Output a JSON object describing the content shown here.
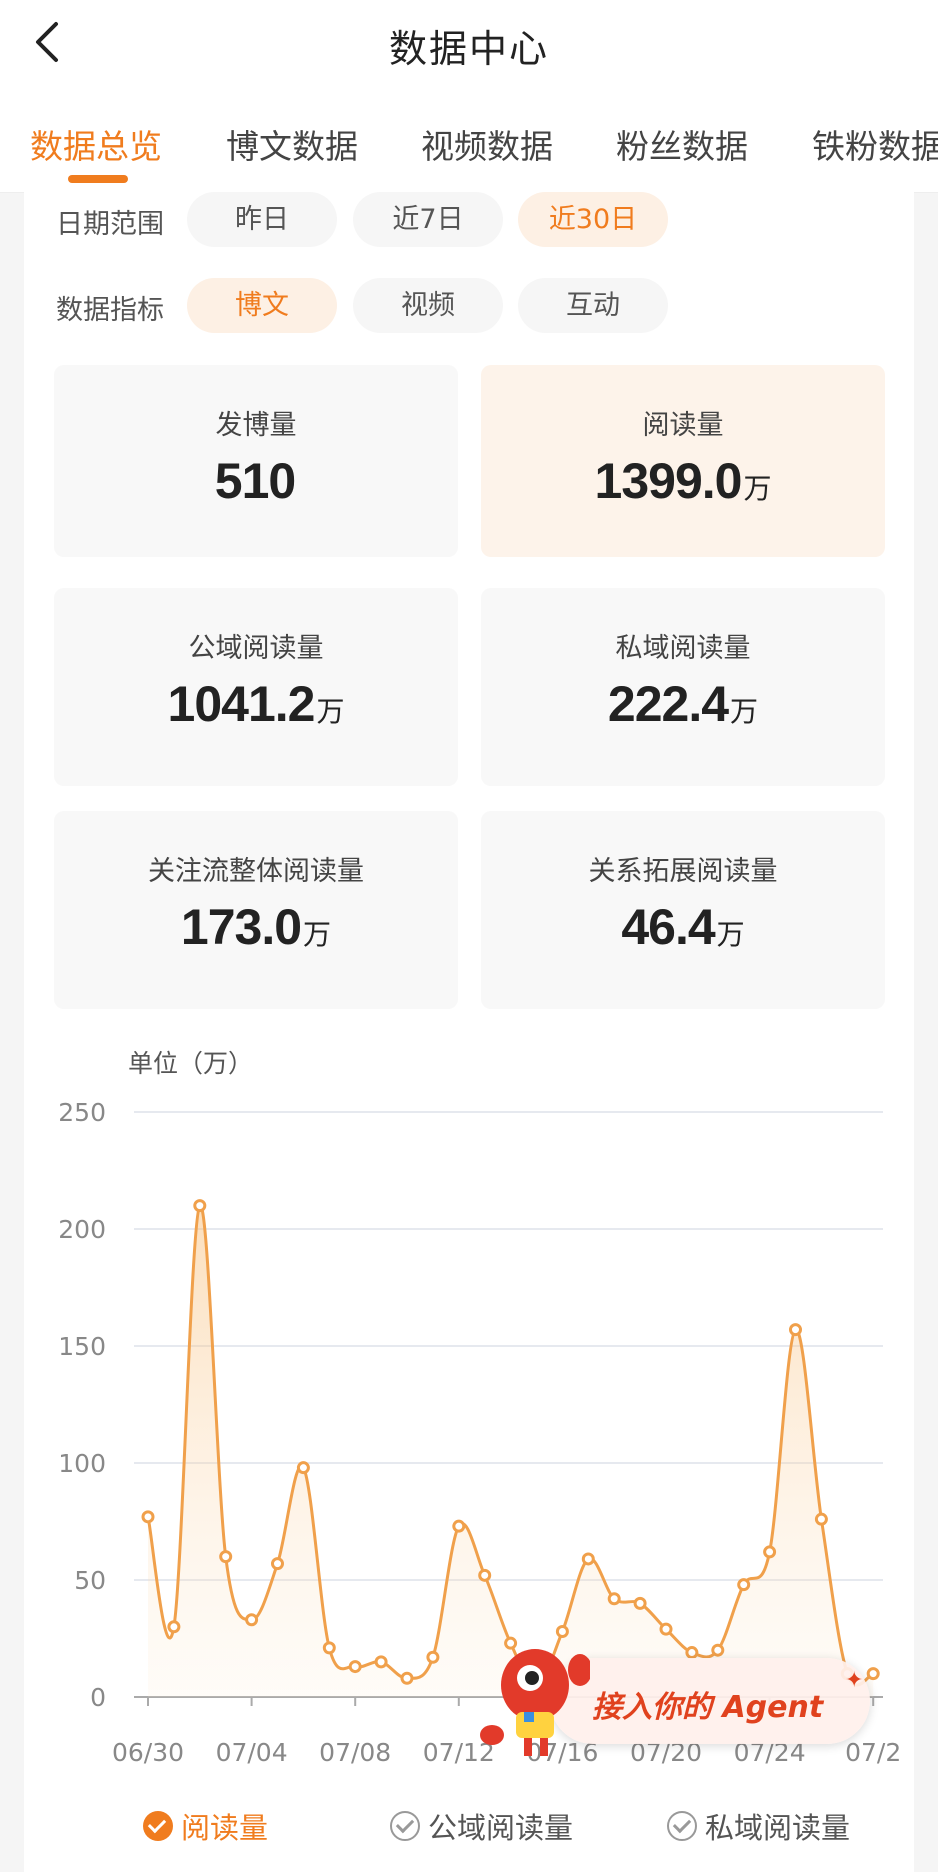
{
  "header": {
    "title": "数据中心"
  },
  "tabs": [
    {
      "label": "数据总览",
      "active": true
    },
    {
      "label": "博文数据"
    },
    {
      "label": "视频数据"
    },
    {
      "label": "粉丝数据"
    },
    {
      "label": "铁粉数据"
    }
  ],
  "filters": {
    "date_label": "日期范围",
    "date_options": [
      "昨日",
      "近7日",
      "近30日"
    ],
    "date_selected": "近30日",
    "metric_label": "数据指标",
    "metric_options": [
      "博文",
      "视频",
      "互动"
    ],
    "metric_selected": "博文"
  },
  "metrics": [
    {
      "label": "发博量",
      "value": "510",
      "unit": ""
    },
    {
      "label": "阅读量",
      "value": "1399.0",
      "unit": "万",
      "active": true
    },
    {
      "label": "公域阅读量",
      "value": "1041.2",
      "unit": "万"
    },
    {
      "label": "私域阅读量",
      "value": "222.4",
      "unit": "万"
    },
    {
      "label": "关注流整体阅读量",
      "value": "173.0",
      "unit": "万"
    },
    {
      "label": "关系拓展阅读量",
      "value": "46.4",
      "unit": "万"
    }
  ],
  "chart_data": {
    "type": "area",
    "ylabel": "单位（万）",
    "ylim": [
      0,
      250
    ],
    "yticks": [
      0,
      50,
      100,
      150,
      200,
      250
    ],
    "xticks": [
      "06/30",
      "07/04",
      "07/08",
      "07/12",
      "07/16",
      "07/20",
      "07/24",
      "07/2"
    ],
    "x": [
      "06/30",
      "07/01",
      "07/02",
      "07/03",
      "07/04",
      "07/05",
      "07/06",
      "07/07",
      "07/08",
      "07/09",
      "07/10",
      "07/11",
      "07/12",
      "07/13",
      "07/14",
      "07/15",
      "07/16",
      "07/17",
      "07/18",
      "07/19",
      "07/20",
      "07/21",
      "07/22",
      "07/23",
      "07/24",
      "07/25",
      "07/26",
      "07/27",
      "07/28"
    ],
    "series": [
      {
        "name": "阅读量",
        "values": [
          77,
          30,
          210,
          60,
          33,
          57,
          98,
          21,
          13,
          15,
          8,
          17,
          73,
          52,
          23,
          5,
          28,
          59,
          42,
          40,
          29,
          19,
          20,
          48,
          62,
          157,
          76,
          10,
          10
        ]
      }
    ],
    "legend": [
      {
        "name": "阅读量",
        "checked": true
      },
      {
        "name": "公域阅读量",
        "checked": false
      },
      {
        "name": "私域阅读量",
        "checked": false
      }
    ],
    "color": "#f0a04b",
    "grid": true
  },
  "agent_banner": {
    "text": "接入你的 Agent"
  }
}
